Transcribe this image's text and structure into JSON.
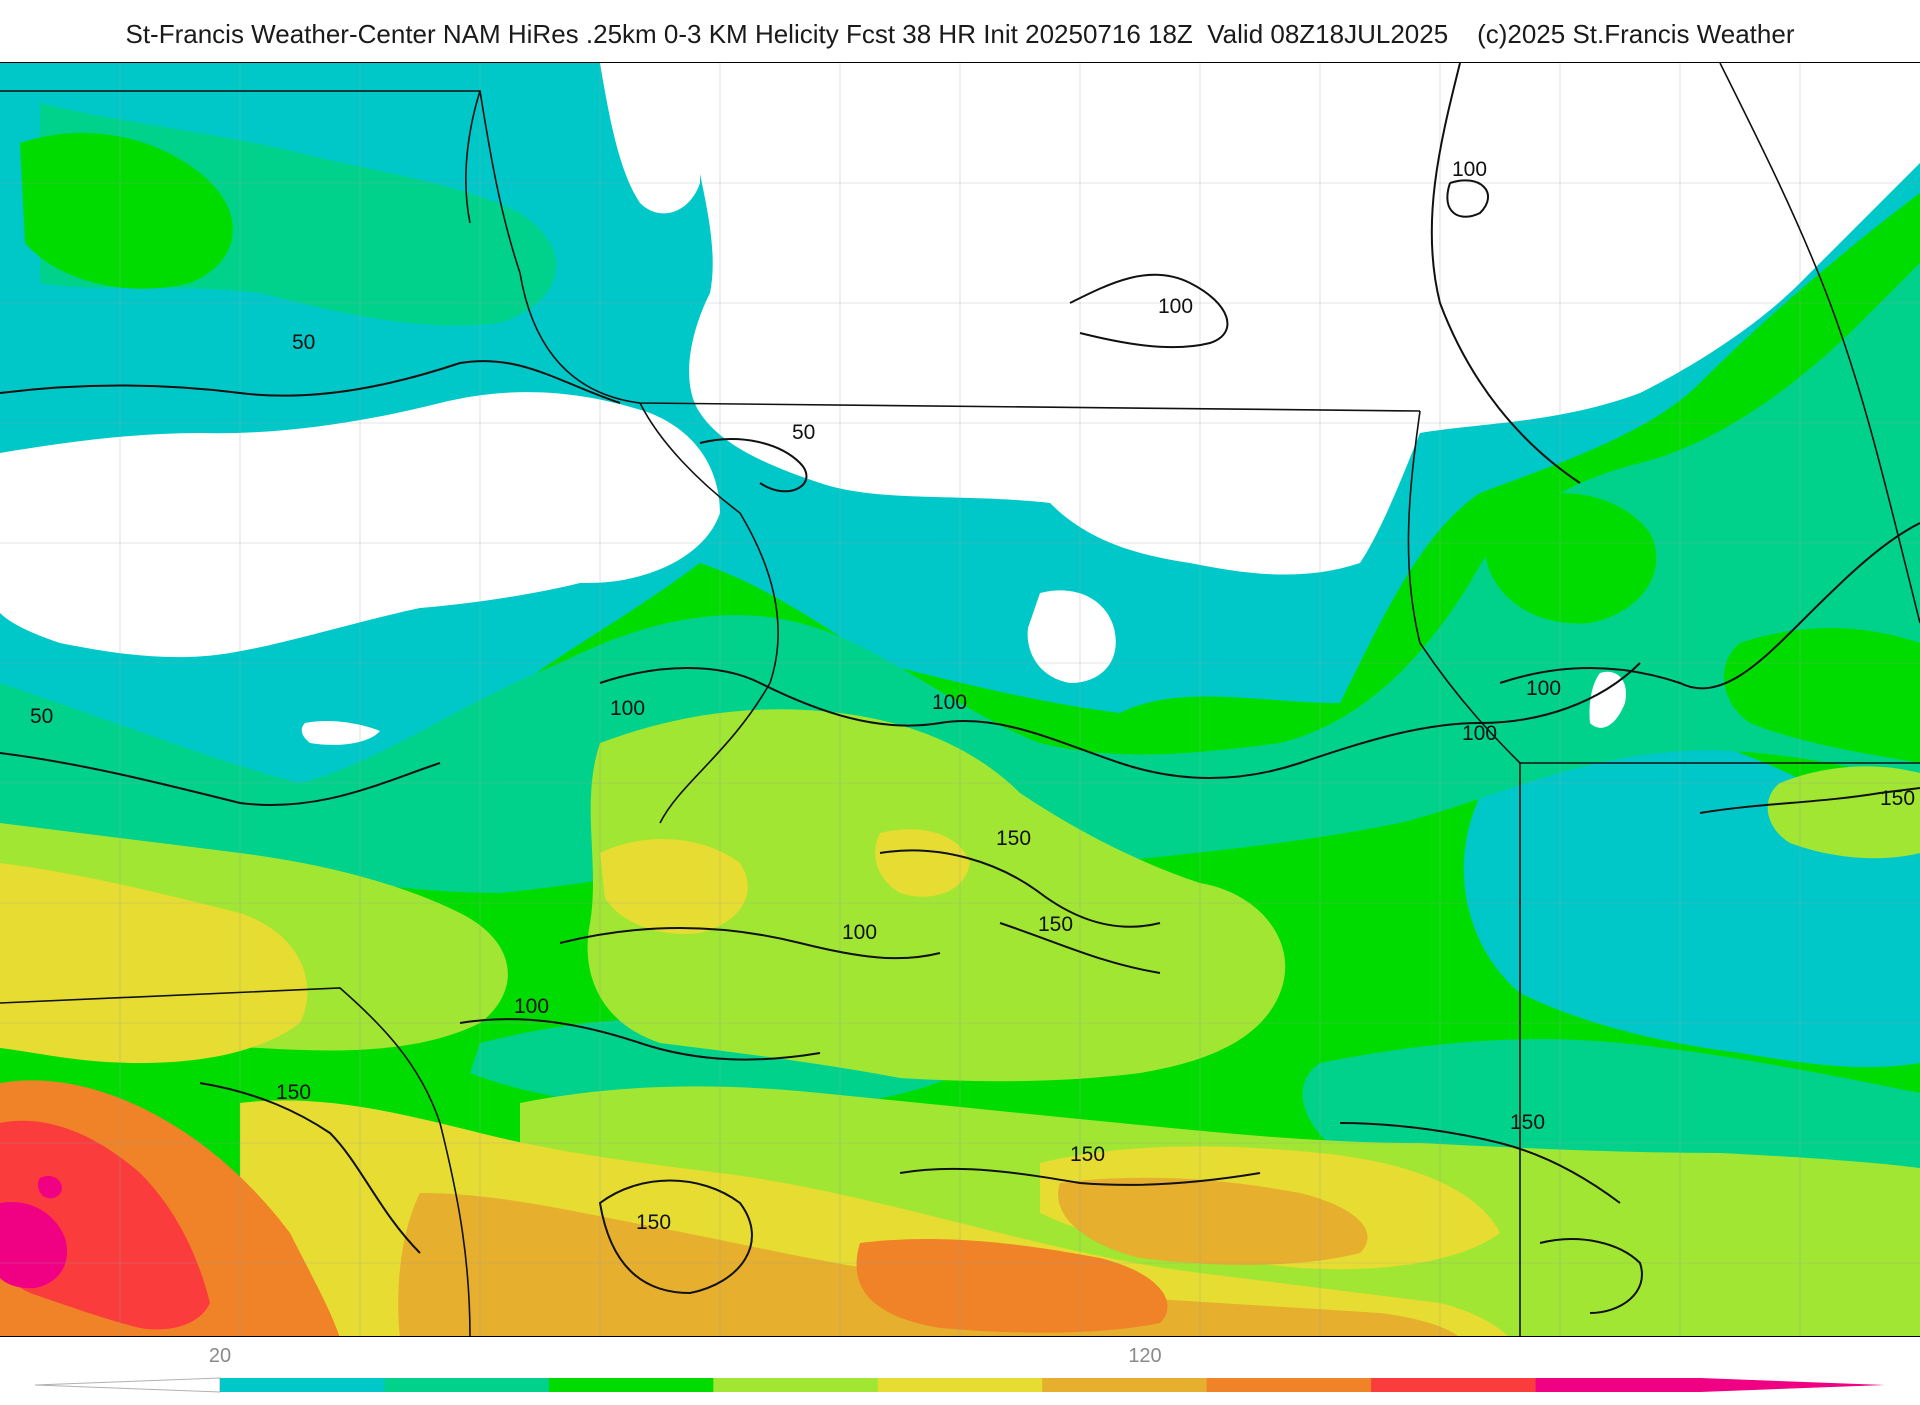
{
  "header": {
    "title": "St-Francis Weather-Center NAM HiRes .25km 0-3 KM Helicity Fcst 38 HR Init 20250716 18Z  Valid 08Z18JUL2025    (c)2025 St.Francis Weather"
  },
  "map": {
    "field": "0-3 KM Helicity",
    "colors": {
      "background": "#ffffff",
      "cyan": "#00c8c8",
      "teal": "#00d28c",
      "green": "#00dc00",
      "lime": "#a0e632",
      "yellow": "#e6dc32",
      "gold": "#e6af2d",
      "orange": "#f08228",
      "red": "#fa3c3c",
      "magenta": "#f00082"
    },
    "contour_labels": [
      {
        "id": "c50-west",
        "text": "50"
      },
      {
        "id": "c50-nw",
        "text": "50"
      },
      {
        "id": "c50-center",
        "text": "50"
      },
      {
        "id": "c100-north-center",
        "text": "100"
      },
      {
        "id": "c100-northeast",
        "text": "100"
      },
      {
        "id": "c100-west-central",
        "text": "100"
      },
      {
        "id": "c100-center",
        "text": "100"
      },
      {
        "id": "c100-east-a",
        "text": "100"
      },
      {
        "id": "c100-east-b",
        "text": "100"
      },
      {
        "id": "c100-south-center",
        "text": "100"
      },
      {
        "id": "c100-southwest",
        "text": "100"
      },
      {
        "id": "c150-center-a",
        "text": "150"
      },
      {
        "id": "c150-center-b",
        "text": "150"
      },
      {
        "id": "c150-east",
        "text": "150"
      },
      {
        "id": "c150-southwest",
        "text": "150"
      },
      {
        "id": "c150-south-a",
        "text": "150"
      },
      {
        "id": "c150-south-b",
        "text": "150"
      },
      {
        "id": "c150-southeast",
        "text": "150"
      }
    ]
  },
  "legend": {
    "ticks": [
      {
        "label": "20"
      },
      {
        "label": "120"
      }
    ],
    "bins": [
      "#00c8c8",
      "#00d28c",
      "#00dc00",
      "#a0e632",
      "#e6dc32",
      "#e6af2d",
      "#f08228",
      "#fa3c3c",
      "#f00082"
    ]
  }
}
